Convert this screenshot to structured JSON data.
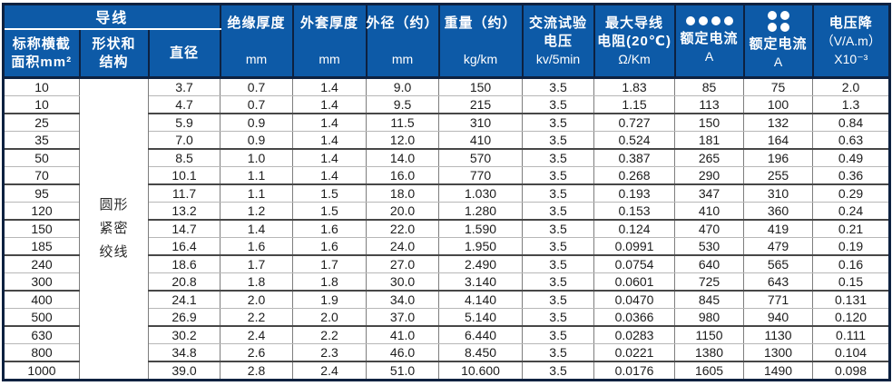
{
  "colors": {
    "header_bg": "#0d5aa7",
    "header_text": "#ffffff",
    "outer_border": "#0d2140",
    "group_separator": "#ffffff",
    "grid_vertical": "#7d7d7d",
    "grid_light": "#b7b7b7",
    "grid_dark": "#474747",
    "body_text": "#1c1c1c"
  },
  "header": {
    "conductor_group_label": "导线",
    "sub_columns": [
      {
        "lines": [
          "标称横截",
          "面积mm²"
        ]
      },
      {
        "lines": [
          "形状和",
          "结构"
        ]
      },
      {
        "lines": [
          "直径"
        ]
      }
    ],
    "columns": [
      {
        "label": "绝缘厚度",
        "unit": "mm"
      },
      {
        "label": "外套厚度",
        "unit": "mm"
      },
      {
        "label": "外径（约）",
        "unit": "mm"
      },
      {
        "label": "重量（约）",
        "unit": "kg/km"
      },
      {
        "lines": [
          "交流试验",
          "电压",
          "kv/5min"
        ]
      },
      {
        "lines": [
          "最大导线",
          "电阻(20℃)",
          "Ω/Km"
        ]
      },
      {
        "icon": "four-dots-row",
        "label": "额定电流",
        "unit": "A"
      },
      {
        "icon": "four-dots-grid",
        "label": "额定电流",
        "unit": "A"
      },
      {
        "lines": [
          "电压降",
          "（V/A.m）",
          "X10⁻³"
        ]
      }
    ]
  },
  "shape_cell_lines": [
    "圆形",
    "紧密",
    "绞线"
  ],
  "rows": [
    [
      "10",
      "3.7",
      "0.7",
      "1.4",
      "9.0",
      "150",
      "3.5",
      "1.83",
      "85",
      "75",
      "2.0"
    ],
    [
      "10",
      "4.7",
      "0.7",
      "1.4",
      "9.5",
      "215",
      "3.5",
      "1.15",
      "113",
      "100",
      "1.3"
    ],
    [
      "25",
      "5.9",
      "0.9",
      "1.4",
      "11.5",
      "310",
      "3.5",
      "0.727",
      "150",
      "132",
      "0.84"
    ],
    [
      "35",
      "7.0",
      "0.9",
      "1.4",
      "12.0",
      "410",
      "3.5",
      "0.524",
      "181",
      "164",
      "0.63"
    ],
    [
      "50",
      "8.5",
      "1.0",
      "1.4",
      "14.0",
      "570",
      "3.5",
      "0.387",
      "265",
      "196",
      "0.49"
    ],
    [
      "70",
      "10.1",
      "1.1",
      "1.4",
      "16.0",
      "770",
      "3.5",
      "0.268",
      "290",
      "255",
      "0.36"
    ],
    [
      "95",
      "11.7",
      "1.1",
      "1.5",
      "18.0",
      "1.030",
      "3.5",
      "0.193",
      "347",
      "310",
      "0.29"
    ],
    [
      "120",
      "13.2",
      "1.2",
      "1.5",
      "20.0",
      "1.280",
      "3.5",
      "0.153",
      "410",
      "360",
      "0.24"
    ],
    [
      "150",
      "14.7",
      "1.4",
      "1.6",
      "22.0",
      "1.590",
      "3.5",
      "0.124",
      "470",
      "419",
      "0.21"
    ],
    [
      "185",
      "16.4",
      "1.6",
      "1.6",
      "24.0",
      "1.950",
      "3.5",
      "0.0991",
      "530",
      "479",
      "0.19"
    ],
    [
      "240",
      "18.6",
      "1.7",
      "1.7",
      "27.0",
      "2.490",
      "3.5",
      "0.0754",
      "640",
      "565",
      "0.16"
    ],
    [
      "300",
      "20.8",
      "1.8",
      "1.8",
      "30.0",
      "3.140",
      "3.5",
      "0.0601",
      "725",
      "643",
      "0.15"
    ],
    [
      "400",
      "24.1",
      "2.0",
      "1.9",
      "34.0",
      "4.140",
      "3.5",
      "0.0470",
      "845",
      "771",
      "0.131"
    ],
    [
      "500",
      "26.9",
      "2.2",
      "2.0",
      "37.0",
      "5.140",
      "3.5",
      "0.0366",
      "980",
      "940",
      "0.120"
    ],
    [
      "630",
      "30.2",
      "2.4",
      "2.2",
      "41.0",
      "6.440",
      "3.5",
      "0.0283",
      "1150",
      "1130",
      "0.111"
    ],
    [
      "800",
      "34.8",
      "2.6",
      "2.3",
      "46.0",
      "8.450",
      "3.5",
      "0.0221",
      "1380",
      "1300",
      "0.104"
    ],
    [
      "1000",
      "39.0",
      "2.8",
      "2.4",
      "51.0",
      "10.600",
      "3.5",
      "0.0176",
      "1605",
      "1490",
      "0.098"
    ]
  ]
}
